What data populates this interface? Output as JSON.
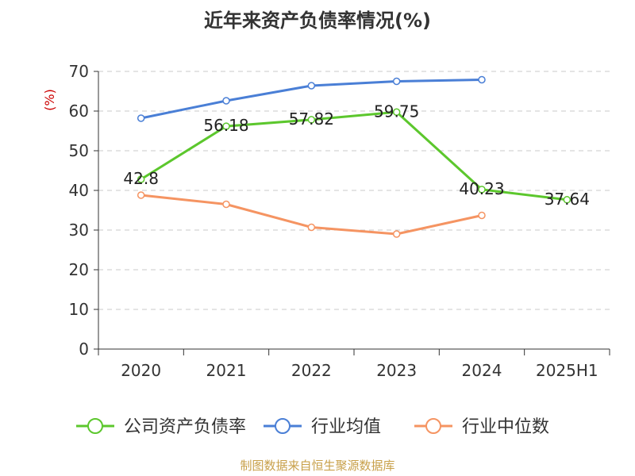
{
  "chart_data": {
    "type": "line",
    "title": "近年来资产负债率情况(%)",
    "ylabel": "(%)",
    "xlabel": "",
    "categories": [
      "2020",
      "2021",
      "2022",
      "2023",
      "2024",
      "2025H1"
    ],
    "ylim": [
      0,
      70
    ],
    "yticks": [
      0,
      10,
      20,
      30,
      40,
      50,
      60,
      70
    ],
    "grid": true,
    "legend_position": "bottom",
    "series": [
      {
        "name": "公司资产负债率",
        "color": "#5cc72d",
        "values": [
          42.8,
          56.18,
          57.82,
          59.75,
          40.23,
          37.64
        ],
        "labels": [
          "42.8",
          "56.18",
          "57.82",
          "59.75",
          "40.23",
          "37.64"
        ]
      },
      {
        "name": "行业均值",
        "color": "#4a7fd6",
        "values": [
          58.2,
          62.6,
          66.4,
          67.5,
          67.9,
          null
        ]
      },
      {
        "name": "行业中位数",
        "color": "#f59462",
        "values": [
          38.8,
          36.5,
          30.7,
          29.0,
          33.7,
          null
        ]
      }
    ]
  },
  "footer": {
    "source": "制图数据来自恒生聚源数据库",
    "source_color": "#c8a04a"
  }
}
